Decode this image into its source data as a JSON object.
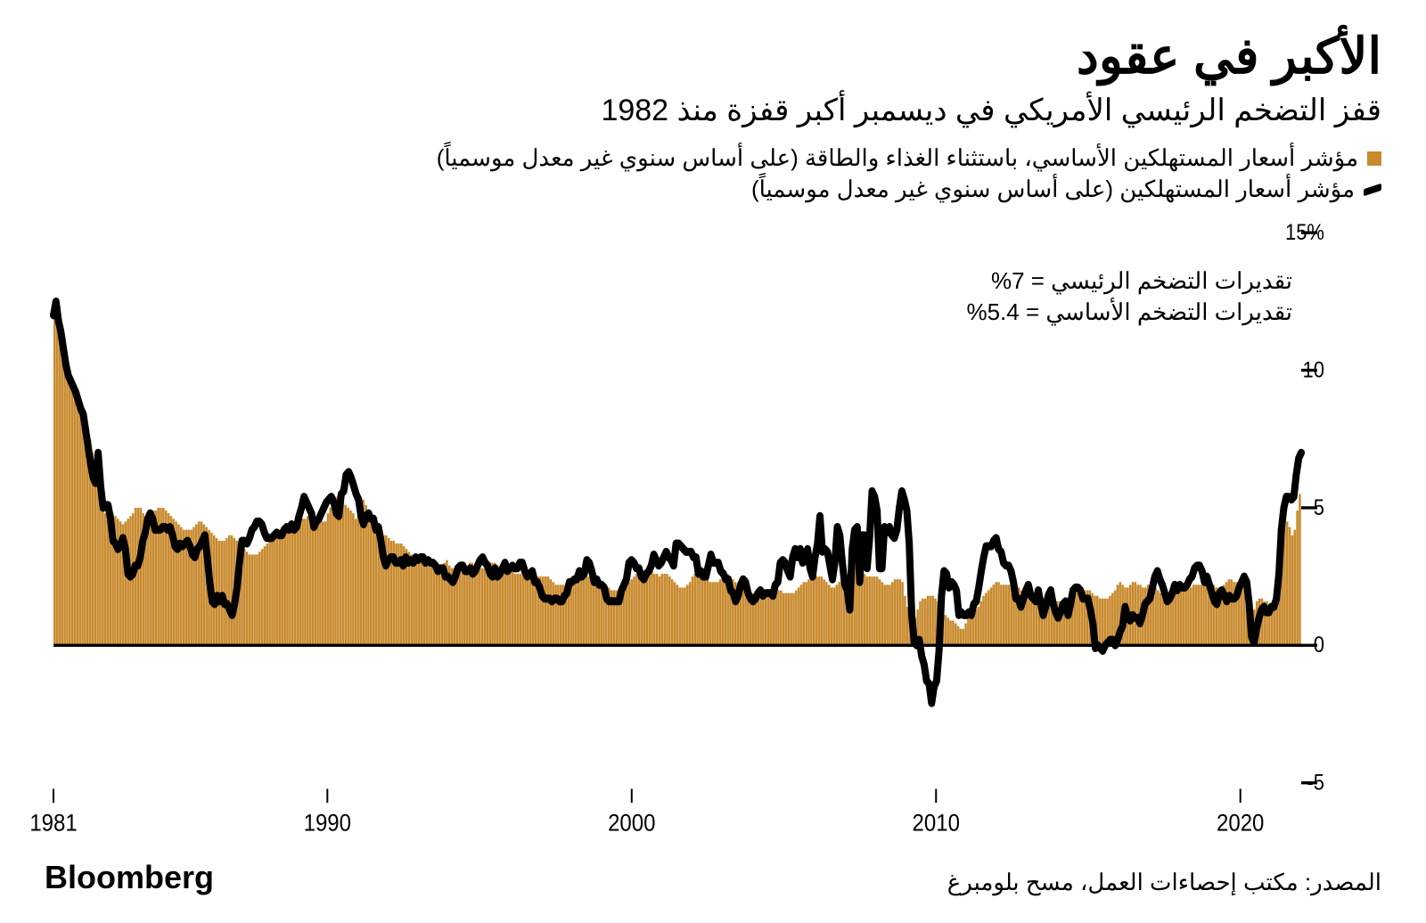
{
  "title": "الأكبر في عقود",
  "subtitle": "قفز التضخم الرئيسي الأمريكي في ديسمبر أكبر قفزة منذ 1982",
  "legend": {
    "core": "مؤشر أسعار المستهلكين الأساسي، باستثناء الغذاء والطاقة (على أساس سنوي غير معدل موسمياً)",
    "headline": "مؤشر أسعار المستهلكين (على أساس سنوي غير معدل موسمياً)"
  },
  "estimates": {
    "line1": "تقديرات التضخم الرئيسي = 7%",
    "line2": "تقديرات التضخم الأساسي = 5.4%"
  },
  "source": "المصدر: مكتب إحصاءات العمل، مسح بلومبرغ",
  "brand": "Bloomberg",
  "chart": {
    "type": "bar+line",
    "bar_color": "#c88a2e",
    "line_color": "#000000",
    "line_width": 8,
    "axis_color": "#000000",
    "tick_color": "#000000",
    "background_color": "#ffffff",
    "ylim": [
      -5,
      15
    ],
    "yticks": [
      -5,
      0,
      5,
      10,
      15
    ],
    "ytick_labels": [
      "5-",
      "0",
      "5",
      "10",
      "15%"
    ],
    "xlim": [
      1981,
      2022
    ],
    "xticks": [
      1981,
      1990,
      2000,
      2010,
      2020
    ],
    "xtick_labels": [
      "1981",
      "1990",
      "2000",
      "2010",
      "2020"
    ],
    "tick_fontsize": 22,
    "xlabel_fontsize": 24,
    "core_bars": [
      12.0,
      12.2,
      11.8,
      11.5,
      11.0,
      10.5,
      10.0,
      9.5,
      9.2,
      9.0,
      8.8,
      8.5,
      8.3,
      8.0,
      7.5,
      7.0,
      6.5,
      6.0,
      5.5,
      5.0,
      4.8,
      4.8,
      4.9,
      4.8,
      4.7,
      4.6,
      4.5,
      4.4,
      4.5,
      4.6,
      4.7,
      4.8,
      5.0,
      5.0,
      5.0,
      4.8,
      4.7,
      4.7,
      4.8,
      4.9,
      4.9,
      5.0,
      5.0,
      5.0,
      4.9,
      4.8,
      4.7,
      4.6,
      4.5,
      4.4,
      4.3,
      4.2,
      4.2,
      4.2,
      4.2,
      4.3,
      4.4,
      4.5,
      4.5,
      4.4,
      4.3,
      4.2,
      4.1,
      4.0,
      3.9,
      3.8,
      3.8,
      3.8,
      3.9,
      4.0,
      4.0,
      3.9,
      3.8,
      3.7,
      3.6,
      3.5,
      3.4,
      3.3,
      3.3,
      3.3,
      3.3,
      3.4,
      3.5,
      3.6,
      3.7,
      3.8,
      3.9,
      4.0,
      4.1,
      4.2,
      4.3,
      4.4,
      4.4,
      4.5,
      4.5,
      4.5,
      4.5,
      4.6,
      4.6,
      4.6,
      4.7,
      4.7,
      4.7,
      4.7,
      4.7,
      4.6,
      4.5,
      4.5,
      4.8,
      5.0,
      5.2,
      5.4,
      5.4,
      5.3,
      5.2,
      5.1,
      5.0,
      4.9,
      4.8,
      4.6,
      5.5,
      5.4,
      5.3,
      5.1,
      4.9,
      4.7,
      4.5,
      4.3,
      4.2,
      4.1,
      4.0,
      4.0,
      3.9,
      3.8,
      3.8,
      3.7,
      3.7,
      3.7,
      3.6,
      3.5,
      3.4,
      3.3,
      3.2,
      3.1,
      3.2,
      3.2,
      3.2,
      3.1,
      3.1,
      3.0,
      3.0,
      2.9,
      2.9,
      2.9,
      3.0,
      3.1,
      2.9,
      2.8,
      2.8,
      2.7,
      2.7,
      2.8,
      2.9,
      2.9,
      3.0,
      3.0,
      2.9,
      2.8,
      2.8,
      2.8,
      2.9,
      2.9,
      3.0,
      3.0,
      3.0,
      2.9,
      2.8,
      2.7,
      2.6,
      2.6,
      2.7,
      2.7,
      2.6,
      2.6,
      2.6,
      2.7,
      2.7,
      2.7,
      2.6,
      2.6,
      2.6,
      2.5,
      2.5,
      2.5,
      2.5,
      2.5,
      2.4,
      2.3,
      2.2,
      2.2,
      2.2,
      2.2,
      2.2,
      2.2,
      2.2,
      2.2,
      2.3,
      2.3,
      2.4,
      2.4,
      2.5,
      2.5,
      2.5,
      2.5,
      2.4,
      2.3,
      2.2,
      2.1,
      2.1,
      2.1,
      2.0,
      2.0,
      2.0,
      1.9,
      2.0,
      2.1,
      2.2,
      2.3,
      2.4,
      2.5,
      2.6,
      2.6,
      2.6,
      2.7,
      2.7,
      2.7,
      2.7,
      2.6,
      2.6,
      2.5,
      2.6,
      2.6,
      2.6,
      2.5,
      2.4,
      2.3,
      2.2,
      2.1,
      2.1,
      2.1,
      2.2,
      2.3,
      2.5,
      2.6,
      2.7,
      2.7,
      2.6,
      2.5,
      2.4,
      2.3,
      2.3,
      2.3,
      2.3,
      2.4,
      2.7,
      2.7,
      2.6,
      2.5,
      2.4,
      2.3,
      2.2,
      2.2,
      2.1,
      2.0,
      1.9,
      1.9,
      1.9,
      1.9,
      1.9,
      1.9,
      2.0,
      2.0,
      2.0,
      2.0,
      2.0,
      2.0,
      2.0,
      2.0,
      1.9,
      1.9,
      1.9,
      1.9,
      1.9,
      2.0,
      2.1,
      2.2,
      2.3,
      2.3,
      2.4,
      2.4,
      2.5,
      2.5,
      2.5,
      2.5,
      2.4,
      2.3,
      2.2,
      2.1,
      2.1,
      2.2,
      2.3,
      2.4,
      2.5,
      2.6,
      2.8,
      2.9,
      2.9,
      2.9,
      2.8,
      2.7,
      2.6,
      2.5,
      2.5,
      2.5,
      2.5,
      2.5,
      2.4,
      2.3,
      2.2,
      2.2,
      2.2,
      2.3,
      2.4,
      2.4,
      2.4,
      2.3,
      1.8,
      1.4,
      1.0,
      0.8,
      1.0,
      1.3,
      1.6,
      1.7,
      1.7,
      1.8,
      1.8,
      1.8,
      1.7,
      1.6,
      1.4,
      1.2,
      1.1,
      1.0,
      0.9,
      0.9,
      0.8,
      0.7,
      0.6,
      0.6,
      0.8,
      1.0,
      1.1,
      1.2,
      1.3,
      1.4,
      1.6,
      1.8,
      1.9,
      2.0,
      2.1,
      2.2,
      2.3,
      2.3,
      2.2,
      2.2,
      2.2,
      2.2,
      2.3,
      2.3,
      2.2,
      2.1,
      2.0,
      1.9,
      1.9,
      1.9,
      1.9,
      1.9,
      1.8,
      1.8,
      1.7,
      1.7,
      1.7,
      1.7,
      1.7,
      1.7,
      1.6,
      1.6,
      1.6,
      1.6,
      1.7,
      1.8,
      1.8,
      1.9,
      1.9,
      2.0,
      2.0,
      2.0,
      2.0,
      2.0,
      1.9,
      1.8,
      1.8,
      1.7,
      1.7,
      1.7,
      1.7,
      1.8,
      1.9,
      2.0,
      2.2,
      2.3,
      2.2,
      2.1,
      2.1,
      2.2,
      2.3,
      2.3,
      2.2,
      2.2,
      2.1,
      2.1,
      2.2,
      2.2,
      2.2,
      2.1,
      2.0,
      1.9,
      1.8,
      1.7,
      1.7,
      1.8,
      1.9,
      2.0,
      2.1,
      2.2,
      2.2,
      2.2,
      2.1,
      2.1,
      2.2,
      2.2,
      2.2,
      2.2,
      2.2,
      2.2,
      2.3,
      2.3,
      2.2,
      2.1,
      2.1,
      2.1,
      2.2,
      2.3,
      2.4,
      2.4,
      2.3,
      2.3,
      2.3,
      2.3,
      2.2,
      2.1,
      1.4,
      1.2,
      1.3,
      1.6,
      1.7,
      1.7,
      1.6,
      1.6,
      1.4,
      1.4,
      1.3,
      1.6,
      3.0,
      3.8,
      4.5,
      4.5,
      4.3,
      4.0,
      4.2,
      4.9,
      5.5
    ],
    "headline_line": [
      12.0,
      12.5,
      11.8,
      11.4,
      10.8,
      10.2,
      9.8,
      9.6,
      9.4,
      9.2,
      8.9,
      8.6,
      8.4,
      7.8,
      7.2,
      6.6,
      6.1,
      5.9,
      7.0,
      5.8,
      5.0,
      5.1,
      5.1,
      4.6,
      3.8,
      3.7,
      3.5,
      3.6,
      3.9,
      3.5,
      2.6,
      2.5,
      2.6,
      2.9,
      2.9,
      3.2,
      3.8,
      4.1,
      4.6,
      4.8,
      4.6,
      4.2,
      4.2,
      4.2,
      4.3,
      4.3,
      4.2,
      4.3,
      4.0,
      3.6,
      3.5,
      3.7,
      3.6,
      3.7,
      3.8,
      3.6,
      3.3,
      3.2,
      3.5,
      3.6,
      3.8,
      4.0,
      3.2,
      2.3,
      1.6,
      1.5,
      1.8,
      1.6,
      1.8,
      1.5,
      1.5,
      1.3,
      1.1,
      1.5,
      2.1,
      3.0,
      3.8,
      3.8,
      3.7,
      3.9,
      4.2,
      4.3,
      4.5,
      4.5,
      4.4,
      4.1,
      3.9,
      3.9,
      3.9,
      4.0,
      4.1,
      4.0,
      4.0,
      4.2,
      4.3,
      4.2,
      4.4,
      4.2,
      4.3,
      4.7,
      5.0,
      5.4,
      5.2,
      5.0,
      4.8,
      4.3,
      4.5,
      4.6,
      4.8,
      5.0,
      5.2,
      5.3,
      5.4,
      5.2,
      4.8,
      4.7,
      5.5,
      5.6,
      6.2,
      6.3,
      6.1,
      5.8,
      5.5,
      5.3,
      4.7,
      4.4,
      4.7,
      4.8,
      4.6,
      4.6,
      4.2,
      4.3,
      3.8,
      3.2,
      2.9,
      3.1,
      3.2,
      3.2,
      3.0,
      3.0,
      3.1,
      2.9,
      3.2,
      3.0,
      3.1,
      3.0,
      3.2,
      3.1,
      3.2,
      3.2,
      3.0,
      3.1,
      3.0,
      3.0,
      2.9,
      2.7,
      2.8,
      2.8,
      2.5,
      2.5,
      2.4,
      2.3,
      2.5,
      2.8,
      2.9,
      2.9,
      2.7,
      2.7,
      2.8,
      2.6,
      2.7,
      2.9,
      3.1,
      3.2,
      3.0,
      2.9,
      2.6,
      2.5,
      2.8,
      2.5,
      2.6,
      2.8,
      3.0,
      2.7,
      2.8,
      2.9,
      2.8,
      2.8,
      3.0,
      3.0,
      2.7,
      2.5,
      2.6,
      2.7,
      2.3,
      2.3,
      2.1,
      1.8,
      1.7,
      1.7,
      1.7,
      1.6,
      1.7,
      1.7,
      1.6,
      1.6,
      1.8,
      1.9,
      2.3,
      2.3,
      2.4,
      2.4,
      2.7,
      2.5,
      2.6,
      3.1,
      3.0,
      2.7,
      2.3,
      2.4,
      2.2,
      2.2,
      2.1,
      1.7,
      1.6,
      1.6,
      1.6,
      1.6,
      1.6,
      2.0,
      2.2,
      2.4,
      3.0,
      3.1,
      3.0,
      2.8,
      2.8,
      2.5,
      2.4,
      2.6,
      2.7,
      2.9,
      3.3,
      3.1,
      2.9,
      3.0,
      3.2,
      3.4,
      3.2,
      3.1,
      2.9,
      3.7,
      3.7,
      3.6,
      3.5,
      3.4,
      3.4,
      3.4,
      3.2,
      3.2,
      2.6,
      2.7,
      2.5,
      2.5,
      2.9,
      3.3,
      3.0,
      3.0,
      3.0,
      2.7,
      2.6,
      2.4,
      2.4,
      2.0,
      1.9,
      1.6,
      1.8,
      2.2,
      2.4,
      2.3,
      1.9,
      1.7,
      1.6,
      1.7,
      1.9,
      2.0,
      1.8,
      1.9,
      1.9,
      1.9,
      1.8,
      2.2,
      2.3,
      3.0,
      3.1,
      3.0,
      2.7,
      2.5,
      3.2,
      3.5,
      3.2,
      3.5,
      3.0,
      3.1,
      3.5,
      2.8,
      2.5,
      3.2,
      3.7,
      4.7,
      3.4,
      3.5,
      3.4,
      2.9,
      2.4,
      3.0,
      4.3,
      4.0,
      3.0,
      2.2,
      2.0,
      1.3,
      3.5,
      4.2,
      4.3,
      2.3,
      4.0,
      4.0,
      2.8,
      3.9,
      5.6,
      5.4,
      4.9,
      2.8,
      2.8,
      4.3,
      4.1,
      4.3,
      4.0,
      3.9,
      4.2,
      5.0,
      5.6,
      5.3,
      4.9,
      3.7,
      1.1,
      0.1,
      0.0,
      0.2,
      -0.4,
      -0.7,
      -1.3,
      -1.4,
      -2.1,
      -1.5,
      -1.3,
      -0.2,
      1.8,
      2.7,
      2.6,
      2.1,
      2.3,
      2.2,
      2.0,
      1.1,
      1.2,
      1.1,
      1.1,
      1.2,
      1.1,
      1.5,
      1.6,
      2.1,
      2.7,
      3.2,
      3.6,
      3.6,
      3.6,
      3.8,
      3.9,
      3.5,
      3.4,
      3.0,
      2.9,
      2.9,
      2.7,
      2.3,
      1.7,
      1.7,
      1.4,
      1.7,
      2.0,
      2.2,
      1.8,
      1.7,
      1.6,
      2.0,
      1.5,
      1.1,
      1.4,
      1.8,
      2.0,
      1.5,
      1.2,
      1.0,
      1.2,
      1.5,
      1.6,
      1.1,
      1.5,
      2.0,
      2.1,
      2.1,
      2.0,
      1.7,
      1.7,
      1.7,
      1.3,
      0.8,
      -0.1,
      0.0,
      -0.1,
      -0.2,
      0.0,
      0.1,
      0.2,
      0.2,
      0.0,
      0.2,
      0.5,
      0.7,
      1.4,
      1.0,
      0.9,
      1.1,
      1.0,
      1.0,
      0.8,
      1.1,
      1.5,
      1.6,
      1.7,
      2.1,
      2.5,
      2.7,
      2.4,
      2.2,
      1.9,
      1.6,
      1.7,
      1.9,
      2.2,
      2.0,
      2.2,
      2.1,
      2.1,
      2.2,
      2.4,
      2.5,
      2.8,
      2.9,
      2.9,
      2.7,
      2.3,
      2.5,
      2.2,
      1.9,
      1.6,
      1.5,
      1.9,
      2.0,
      1.8,
      1.6,
      1.8,
      1.7,
      1.7,
      1.8,
      2.1,
      2.3,
      2.5,
      2.3,
      1.5,
      0.3,
      0.1,
      0.6,
      1.0,
      1.3,
      1.4,
      1.2,
      1.2,
      1.4,
      1.4,
      1.7,
      2.6,
      4.2,
      5.0,
      5.4,
      5.4,
      5.3,
      5.4,
      6.2,
      6.8,
      7.0
    ]
  }
}
